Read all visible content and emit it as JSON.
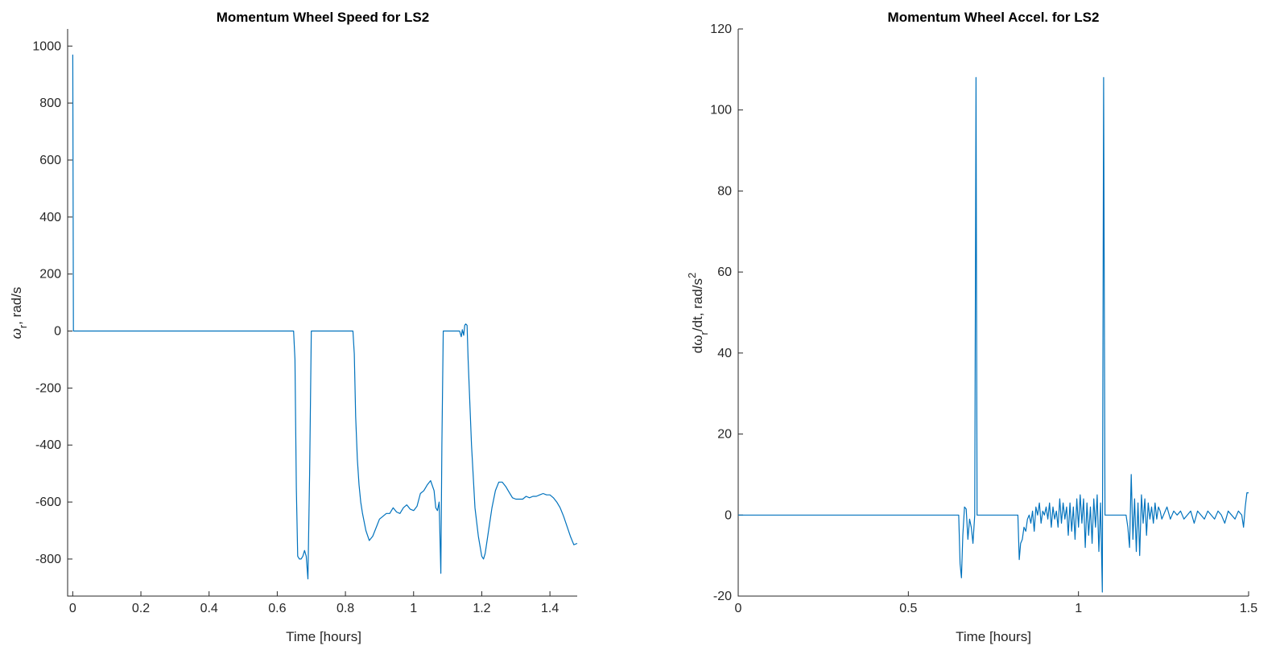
{
  "chart_data": [
    {
      "type": "line",
      "title": "Momentum Wheel Speed for LS2",
      "xlabel": "Time [hours]",
      "ylabel_main": "ω",
      "ylabel_sub": "r",
      "ylabel_rest": ", rad/s",
      "xlim": [
        -0.015,
        1.48
      ],
      "ylim": [
        -930,
        1060
      ],
      "xticks": [
        0,
        0.2,
        0.4,
        0.6,
        0.8,
        1,
        1.2,
        1.4
      ],
      "xtick_labels": [
        "0",
        "0.2",
        "0.4",
        "0.6",
        "0.8",
        "1",
        "1.2",
        "1.4"
      ],
      "yticks": [
        -800,
        -600,
        -400,
        -200,
        0,
        200,
        400,
        600,
        800,
        1000
      ],
      "ytick_labels": [
        "-800",
        "-600",
        "-400",
        "-200",
        "0",
        "200",
        "400",
        "600",
        "800",
        "1000"
      ],
      "color": "#0072BD",
      "x": [
        0,
        0.002,
        0.005,
        0.3,
        0.648,
        0.652,
        0.656,
        0.66,
        0.665,
        0.67,
        0.675,
        0.68,
        0.685,
        0.69,
        0.695,
        0.7,
        0.703,
        0.707,
        0.72,
        0.76,
        0.8,
        0.822,
        0.826,
        0.83,
        0.835,
        0.84,
        0.845,
        0.85,
        0.86,
        0.87,
        0.88,
        0.89,
        0.9,
        0.91,
        0.92,
        0.93,
        0.94,
        0.95,
        0.96,
        0.97,
        0.98,
        0.99,
        1.0,
        1.01,
        1.02,
        1.03,
        1.04,
        1.05,
        1.06,
        1.065,
        1.07,
        1.075,
        1.08,
        1.083,
        1.087,
        1.09,
        1.1,
        1.12,
        1.135,
        1.14,
        1.143,
        1.147,
        1.15,
        1.153,
        1.157,
        1.16,
        1.17,
        1.18,
        1.19,
        1.2,
        1.205,
        1.21,
        1.22,
        1.23,
        1.24,
        1.25,
        1.26,
        1.27,
        1.28,
        1.29,
        1.3,
        1.31,
        1.32,
        1.33,
        1.34,
        1.35,
        1.36,
        1.37,
        1.38,
        1.39,
        1.4,
        1.41,
        1.42,
        1.43,
        1.44,
        1.45,
        1.46,
        1.47,
        1.48
      ],
      "y": [
        970,
        0,
        0,
        0,
        0,
        -100,
        -550,
        -790,
        -800,
        -800,
        -790,
        -770,
        -790,
        -870,
        -500,
        0,
        0,
        0,
        0,
        0,
        0,
        0,
        -80,
        -300,
        -450,
        -540,
        -600,
        -640,
        -700,
        -735,
        -720,
        -690,
        -660,
        -650,
        -640,
        -640,
        -620,
        -635,
        -640,
        -620,
        -610,
        -625,
        -630,
        -615,
        -570,
        -560,
        -540,
        -525,
        -560,
        -620,
        -630,
        -600,
        -850,
        -400,
        0,
        0,
        0,
        0,
        0,
        -20,
        5,
        -15,
        20,
        25,
        20,
        -100,
        -400,
        -620,
        -720,
        -790,
        -800,
        -780,
        -700,
        -620,
        -560,
        -530,
        -530,
        -545,
        -565,
        -585,
        -590,
        -590,
        -590,
        -580,
        -585,
        -580,
        -580,
        -575,
        -570,
        -575,
        -575,
        -585,
        -600,
        -620,
        -650,
        -685,
        -720,
        -750,
        -745
      ]
    },
    {
      "type": "line",
      "title": "Momentum Wheel Accel. for LS2",
      "xlabel": "Time [hours]",
      "ylabel_main": "dω",
      "ylabel_sub": "r",
      "ylabel_rest": "/dt, rad/s",
      "ylabel_sup": "2",
      "xlim": [
        0,
        1.5
      ],
      "ylim": [
        -20,
        120
      ],
      "xticks": [
        0,
        0.5,
        1,
        1.5
      ],
      "xtick_labels": [
        "0",
        "0.5",
        "1",
        "1.5"
      ],
      "yticks": [
        -20,
        0,
        20,
        40,
        60,
        80,
        100,
        120
      ],
      "ytick_labels": [
        "-20",
        "0",
        "20",
        "40",
        "60",
        "80",
        "100",
        "120"
      ],
      "color": "#0072BD",
      "x": [
        0,
        0.4,
        0.648,
        0.652,
        0.656,
        0.66,
        0.665,
        0.67,
        0.675,
        0.68,
        0.685,
        0.69,
        0.695,
        0.699,
        0.702,
        0.706,
        0.71,
        0.75,
        0.8,
        0.822,
        0.826,
        0.83,
        0.835,
        0.84,
        0.845,
        0.85,
        0.855,
        0.86,
        0.865,
        0.87,
        0.875,
        0.88,
        0.885,
        0.89,
        0.895,
        0.9,
        0.905,
        0.91,
        0.915,
        0.92,
        0.925,
        0.93,
        0.935,
        0.94,
        0.945,
        0.95,
        0.955,
        0.96,
        0.965,
        0.97,
        0.975,
        0.98,
        0.985,
        0.99,
        0.995,
        1.0,
        1.005,
        1.01,
        1.015,
        1.02,
        1.025,
        1.03,
        1.035,
        1.04,
        1.045,
        1.05,
        1.055,
        1.06,
        1.065,
        1.07,
        1.074,
        1.078,
        1.082,
        1.086,
        1.09,
        1.1,
        1.12,
        1.14,
        1.145,
        1.15,
        1.155,
        1.16,
        1.165,
        1.17,
        1.175,
        1.18,
        1.185,
        1.19,
        1.195,
        1.2,
        1.205,
        1.21,
        1.215,
        1.22,
        1.225,
        1.23,
        1.235,
        1.24,
        1.245,
        1.25,
        1.26,
        1.27,
        1.28,
        1.29,
        1.3,
        1.31,
        1.32,
        1.33,
        1.34,
        1.35,
        1.36,
        1.37,
        1.38,
        1.39,
        1.4,
        1.41,
        1.42,
        1.43,
        1.44,
        1.45,
        1.46,
        1.47,
        1.48,
        1.485,
        1.49,
        1.495,
        1.5
      ],
      "y": [
        0,
        0,
        0,
        -12,
        -15.5,
        -5,
        2,
        1.5,
        -6,
        -1,
        -3,
        -7,
        0,
        108,
        0,
        0,
        0,
        0,
        0,
        0,
        -11,
        -7,
        -6,
        -3,
        -4,
        -1,
        0,
        -2,
        1,
        -4,
        2,
        0,
        3,
        -2,
        1,
        0,
        2,
        -1,
        3,
        -3,
        2,
        -1,
        1,
        -3,
        4,
        -2,
        3,
        -1,
        2,
        -5,
        3,
        -4,
        2,
        -6,
        4,
        -3,
        5,
        -2,
        4,
        -8,
        3,
        -5,
        2,
        -7,
        4,
        -3,
        5,
        -9,
        3,
        -19,
        108,
        0,
        0,
        0,
        0,
        0,
        0,
        0,
        -3,
        -8,
        10,
        -6,
        4,
        -9,
        3,
        -10,
        5,
        -2,
        4,
        -5,
        3,
        -1,
        2,
        -2,
        3,
        -1,
        2,
        1,
        -1,
        0,
        2,
        -1,
        1,
        0,
        1,
        -1,
        0,
        1,
        -2,
        1,
        0,
        -1,
        1,
        0,
        -1,
        1,
        0,
        -2,
        1,
        0,
        -1,
        1,
        0,
        -3,
        2,
        5.5,
        5.5
      ]
    }
  ]
}
